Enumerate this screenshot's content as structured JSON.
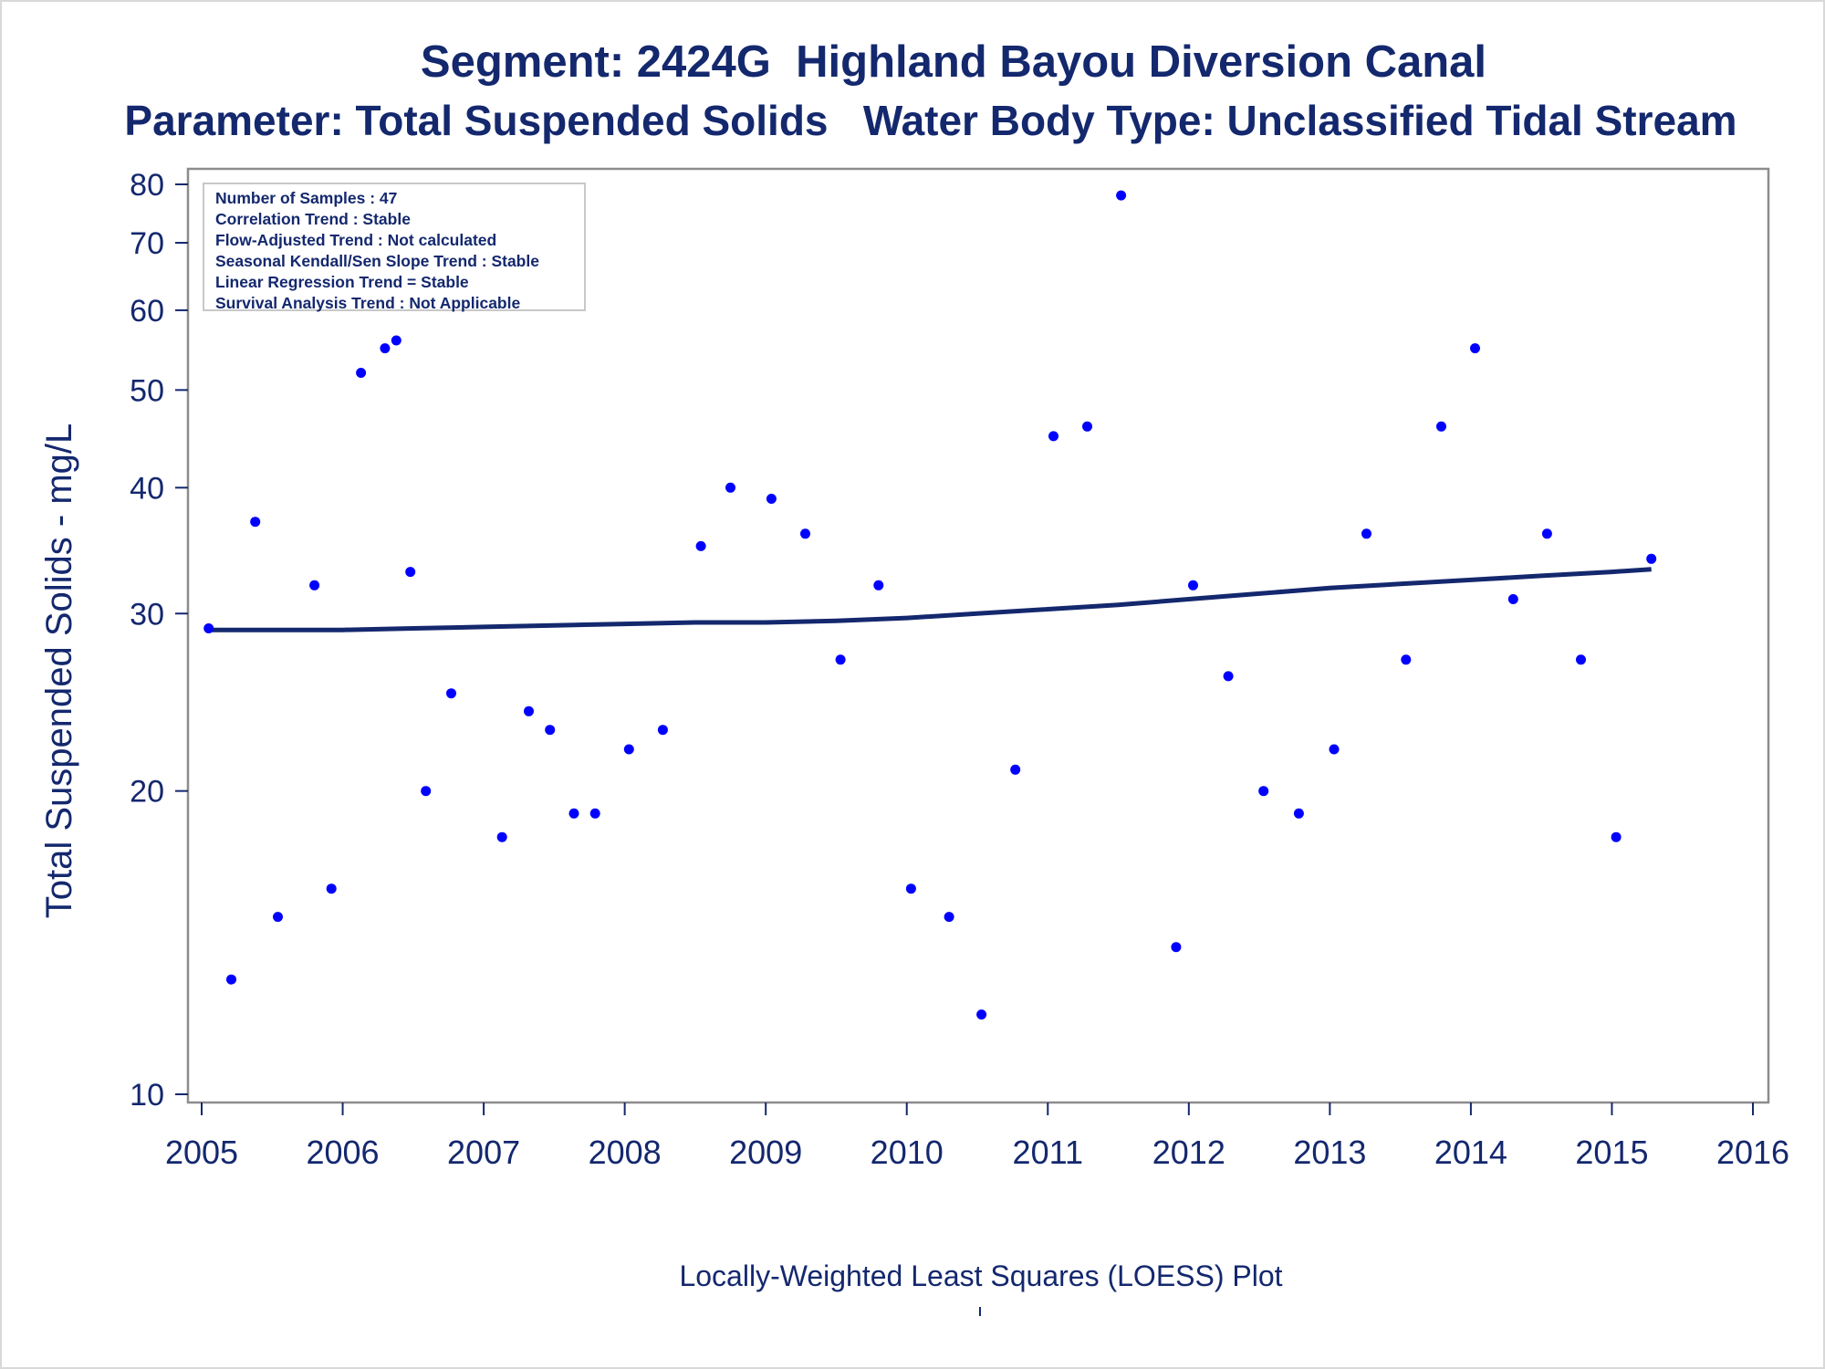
{
  "titles": {
    "line1": "Segment: 2424G  Highland Bayou Diversion Canal",
    "line2": "Parameter: Total Suspended Solids   Water Body Type: Unclassified Tidal Stream"
  },
  "stats_box": [
    "Number of Samples : 47",
    "Correlation Trend : Stable",
    "Flow-Adjusted Trend : Not calculated",
    "Seasonal Kendall/Sen Slope Trend : Stable",
    "Linear Regression Trend = Stable",
    "Survival Analysis Trend : Not Applicable"
  ],
  "footnote": "Locally-Weighted Least Squares (LOESS) Plot",
  "colors": {
    "text": "#14286e",
    "points": "#0000ff",
    "line": "#14286e",
    "axis": "#8c8c8c"
  },
  "chart_data": {
    "type": "scatter",
    "title": "Segment: 2424G  Highland Bayou Diversion Canal",
    "subtitle": "Parameter: Total Suspended Solids   Water Body Type: Unclassified Tidal Stream",
    "xlabel": "",
    "ylabel": "Total Suspended Solids - mg/L",
    "y_scale": "log",
    "xlim": [
      2005,
      2016
    ],
    "ylim": [
      10,
      82
    ],
    "x_ticks": [
      "2005",
      "2006",
      "2007",
      "2008",
      "2009",
      "2010",
      "2011",
      "2012",
      "2013",
      "2014",
      "2015",
      "2016"
    ],
    "y_ticks": [
      "10",
      "20",
      "30",
      "40",
      "50",
      "60",
      "70",
      "80"
    ],
    "y_tick_values": [
      10,
      20,
      30,
      40,
      50,
      60,
      70,
      80
    ],
    "grid": false,
    "series": [
      {
        "kind": "points",
        "x": [
          2005.05,
          2005.21,
          2005.38,
          2005.54,
          2005.8,
          2005.92,
          2006.13,
          2006.3,
          2006.38,
          2006.48,
          2006.59,
          2006.77,
          2007.13,
          2007.32,
          2007.47,
          2007.64,
          2007.79,
          2008.03,
          2008.27,
          2008.54,
          2008.75,
          2009.04,
          2009.28,
          2009.53,
          2009.8,
          2010.03,
          2010.3,
          2010.53,
          2010.77,
          2011.04,
          2011.28,
          2011.52,
          2011.91,
          2012.03,
          2012.28,
          2012.53,
          2012.78,
          2013.03,
          2013.26,
          2013.54,
          2013.79,
          2014.03,
          2014.3,
          2014.54,
          2014.78,
          2015.03,
          2015.28
        ],
        "y": [
          29,
          13,
          37,
          15,
          32,
          16,
          52,
          55,
          56,
          33,
          20,
          25,
          18,
          24,
          23,
          19,
          19,
          22,
          23,
          35,
          40,
          39,
          36,
          27,
          32,
          16,
          15,
          12,
          21,
          45,
          46,
          78,
          14,
          32,
          26,
          20,
          19,
          22,
          36,
          27,
          46,
          55,
          31,
          36,
          27,
          18,
          34
        ]
      },
      {
        "kind": "loess-line",
        "x": [
          2005.05,
          2005.5,
          2006.0,
          2006.5,
          2007.0,
          2007.5,
          2008.0,
          2008.5,
          2009.0,
          2009.5,
          2010.0,
          2010.5,
          2011.0,
          2011.5,
          2012.0,
          2012.5,
          2013.0,
          2013.5,
          2014.0,
          2014.5,
          2015.0,
          2015.28
        ],
        "y": [
          28.9,
          28.9,
          28.9,
          29.0,
          29.1,
          29.2,
          29.3,
          29.4,
          29.4,
          29.5,
          29.7,
          30.0,
          30.3,
          30.6,
          31.0,
          31.4,
          31.8,
          32.1,
          32.4,
          32.7,
          33.0,
          33.2
        ]
      }
    ]
  }
}
